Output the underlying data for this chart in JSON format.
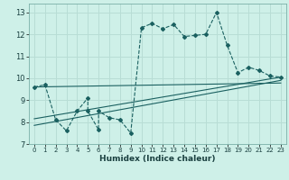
{
  "title": "",
  "xlabel": "Humidex (Indice chaleur)",
  "background_color": "#cef0e8",
  "grid_color": "#b8ddd5",
  "line_color": "#1a6060",
  "xlim": [
    -0.5,
    23.5
  ],
  "ylim": [
    7,
    13.4
  ],
  "xticks": [
    0,
    1,
    2,
    3,
    4,
    5,
    6,
    7,
    8,
    9,
    10,
    11,
    12,
    13,
    14,
    15,
    16,
    17,
    18,
    19,
    20,
    21,
    22,
    23
  ],
  "yticks": [
    7,
    8,
    9,
    10,
    11,
    12,
    13
  ],
  "data_x": [
    0,
    1,
    2,
    3,
    4,
    5,
    5,
    6,
    6,
    7,
    8,
    9,
    10,
    11,
    12,
    13,
    14,
    15,
    16,
    17,
    18,
    19,
    20,
    21,
    22,
    23
  ],
  "data_y": [
    9.6,
    9.7,
    8.1,
    7.6,
    8.5,
    9.1,
    8.5,
    7.65,
    8.5,
    8.2,
    8.1,
    7.5,
    12.3,
    12.5,
    12.25,
    12.45,
    11.9,
    11.95,
    12.0,
    13.0,
    11.5,
    10.25,
    10.5,
    10.35,
    10.1,
    10.05
  ],
  "trend1_x": [
    0,
    23
  ],
  "trend1_y": [
    9.6,
    9.78
  ],
  "trend2_x": [
    0,
    23
  ],
  "trend2_y": [
    8.15,
    10.05
  ],
  "trend3_x": [
    0,
    23
  ],
  "trend3_y": [
    7.85,
    9.9
  ]
}
